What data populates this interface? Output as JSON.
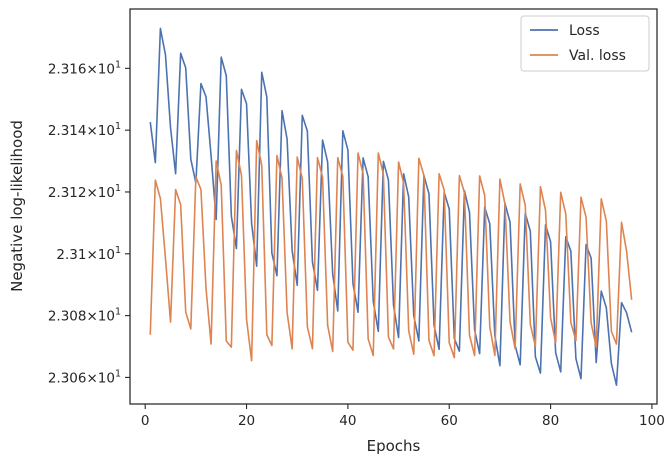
{
  "chart_data": {
    "type": "line",
    "xlabel": "Epochs",
    "ylabel": "Negative log-likelihood",
    "xlim": [
      -3,
      101
    ],
    "ylim": [
      23.0514,
      23.1792
    ],
    "x_ticks": [
      0,
      20,
      40,
      60,
      80,
      100
    ],
    "x_tick_labels": [
      "0",
      "20",
      "40",
      "60",
      "80",
      "100"
    ],
    "y_ticks": [
      23.06,
      23.08,
      23.1,
      23.12,
      23.14,
      23.16
    ],
    "y_tick_labels": [
      {
        "base": "2.306",
        "exp": "1"
      },
      {
        "base": "2.308",
        "exp": "1"
      },
      {
        "base": "2.31",
        "exp": "1"
      },
      {
        "base": "2.312",
        "exp": "1"
      },
      {
        "base": "2.314",
        "exp": "1"
      },
      {
        "base": "2.316",
        "exp": "1"
      }
    ],
    "legend_position": "top-right",
    "grid": false,
    "x": [
      1,
      2,
      3,
      4,
      5,
      6,
      7,
      8,
      9,
      10,
      11,
      12,
      13,
      14,
      15,
      16,
      17,
      18,
      19,
      20,
      21,
      22,
      23,
      24,
      25,
      26,
      27,
      28,
      29,
      30,
      31,
      32,
      33,
      34,
      35,
      36,
      37,
      38,
      39,
      40,
      41,
      42,
      43,
      44,
      45,
      46,
      47,
      48,
      49,
      50,
      51,
      52,
      53,
      54,
      55,
      56,
      57,
      58,
      59,
      60,
      61,
      62,
      63,
      64,
      65,
      66,
      67,
      68,
      69,
      70,
      71,
      72,
      73,
      74,
      75,
      76,
      77,
      78,
      79,
      80,
      81,
      82,
      83,
      84,
      85,
      86,
      87,
      88,
      89,
      90,
      91,
      92,
      93,
      94,
      95,
      96
    ],
    "series": [
      {
        "name": "Loss",
        "color": "#4c72b0",
        "values": [
          23.1426,
          23.1295,
          23.1729,
          23.1644,
          23.1408,
          23.1259,
          23.1649,
          23.1601,
          23.1306,
          23.1229,
          23.1551,
          23.1508,
          23.1317,
          23.1111,
          23.1636,
          23.1576,
          23.1122,
          23.1017,
          23.1532,
          23.1485,
          23.1098,
          23.096,
          23.1587,
          23.1507,
          23.1002,
          23.0929,
          23.1463,
          23.1371,
          23.101,
          23.0898,
          23.1448,
          23.1397,
          23.0974,
          23.0882,
          23.1368,
          23.1297,
          23.0935,
          23.0815,
          23.1398,
          23.1336,
          23.0904,
          23.0811,
          23.131,
          23.1249,
          23.0846,
          23.0749,
          23.1299,
          23.1239,
          23.0834,
          23.0729,
          23.1259,
          23.1184,
          23.08,
          23.0718,
          23.1253,
          23.1194,
          23.0769,
          23.0691,
          23.1199,
          23.1145,
          23.0726,
          23.0685,
          23.1204,
          23.1134,
          23.0754,
          23.0677,
          23.1151,
          23.1097,
          23.0735,
          23.0638,
          23.1163,
          23.1102,
          23.0704,
          23.0641,
          23.1131,
          23.1073,
          23.0667,
          23.0614,
          23.1094,
          23.1039,
          23.068,
          23.0618,
          23.1055,
          23.1008,
          23.0661,
          23.0596,
          23.103,
          23.0986,
          23.0648,
          23.0879,
          23.0825,
          23.0645,
          23.0575,
          23.0842,
          23.0809,
          23.0746
        ]
      },
      {
        "name": "Val. loss",
        "color": "#dd8452",
        "values": [
          23.0738,
          23.1238,
          23.1179,
          23.0985,
          23.0779,
          23.1208,
          23.1159,
          23.0811,
          23.0757,
          23.1249,
          23.1208,
          23.0888,
          23.0708,
          23.13,
          23.1222,
          23.0718,
          23.0698,
          23.1334,
          23.1254,
          23.0788,
          23.0654,
          23.1366,
          23.1286,
          23.0738,
          23.0703,
          23.1318,
          23.1245,
          23.081,
          23.0693,
          23.1313,
          23.1243,
          23.0764,
          23.0693,
          23.1311,
          23.1248,
          23.0769,
          23.0684,
          23.1311,
          23.125,
          23.0714,
          23.0688,
          23.1326,
          23.1259,
          23.0725,
          23.0671,
          23.1326,
          23.1258,
          23.0731,
          23.0692,
          23.1297,
          23.1229,
          23.0751,
          23.0675,
          23.1309,
          23.1254,
          23.072,
          23.067,
          23.1259,
          23.1206,
          23.0712,
          23.0664,
          23.1253,
          23.1198,
          23.0736,
          23.0671,
          23.1252,
          23.1189,
          23.0764,
          23.0671,
          23.1242,
          23.1161,
          23.078,
          23.0693,
          23.1226,
          23.1157,
          23.0772,
          23.0701,
          23.1217,
          23.1141,
          23.0793,
          23.0712,
          23.1199,
          23.1129,
          23.0777,
          23.0719,
          23.1183,
          23.1118,
          23.0776,
          23.0698,
          23.1178,
          23.1106,
          23.0749,
          23.0708,
          23.1102,
          23.1008,
          23.0851
        ]
      }
    ]
  }
}
